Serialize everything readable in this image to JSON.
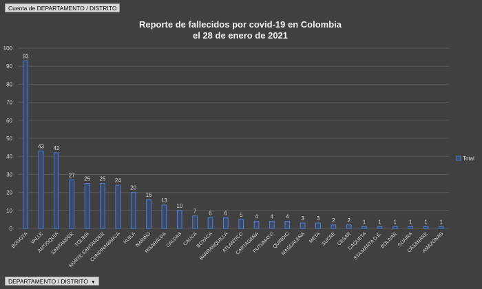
{
  "pivot": {
    "value_field": "Cuenta de DEPARTAMENTO / DISTRITO",
    "axis_field": "DEPARTAMENTO / DISTRITO",
    "dropdown_glyph": "▼"
  },
  "chart_data": {
    "type": "bar",
    "title_lines": [
      "Reporte de fallecidos por covid-19 en Colombia",
      "el 28 de enero de 2021"
    ],
    "categories": [
      "BOGOTA",
      "VALLE",
      "ANTIOQUIA",
      "SANTANDER",
      "TOLIMA",
      "NORTE SANTANDER",
      "CUNDINAMARCA",
      "HUILA",
      "NARIÑO",
      "RISARALDA",
      "CALDAS",
      "CAUCA",
      "BOYACA",
      "BARRANQUILLA",
      "ATLANTICO",
      "CARTAGENA",
      "PUTUMAYO",
      "QUINDIO",
      "MAGDALENA",
      "META",
      "SUCRE",
      "CESAR",
      "CAQUETA",
      "STA MARTA D.E.",
      "BOLIVAR",
      "GUAIRA",
      "CASANARE",
      "AMAZONAS"
    ],
    "series": [
      {
        "name": "Total",
        "values": [
          93,
          43,
          42,
          27,
          25,
          25,
          24,
          20,
          16,
          13,
          10,
          7,
          6,
          6,
          5,
          4,
          4,
          4,
          3,
          3,
          2,
          2,
          1,
          1,
          1,
          1,
          1,
          1
        ]
      }
    ],
    "ylim": [
      0,
      100
    ],
    "yticks": [
      0,
      10,
      20,
      30,
      40,
      50,
      60,
      70,
      80,
      90,
      100
    ],
    "grid": true,
    "legend_position": "right",
    "bar_fill": "#3a4a66",
    "bar_stroke": "#4f7fd8",
    "grid_color": "#5a5a5a"
  }
}
